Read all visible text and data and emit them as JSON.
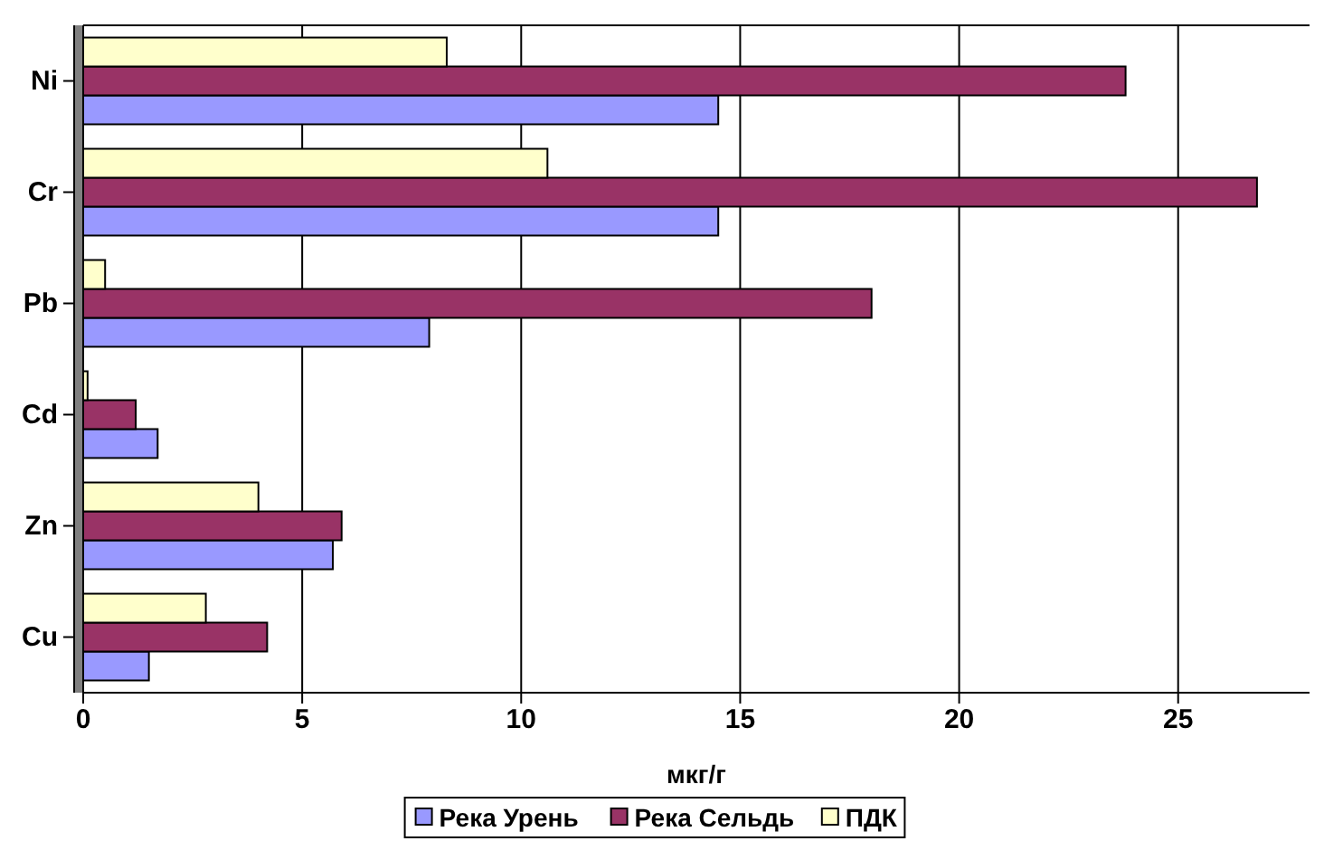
{
  "chart_data": {
    "type": "bar",
    "orientation": "horizontal",
    "xlabel": "мкг/г",
    "categories": [
      "Ni",
      "Cr",
      "Pb",
      "Cd",
      "Zn",
      "Cu"
    ],
    "series": [
      {
        "name": "Река Урень",
        "color": "#9999ff",
        "values": [
          14.5,
          14.5,
          7.9,
          1.7,
          5.7,
          1.5
        ]
      },
      {
        "name": "Река Сельдь",
        "color": "#993366",
        "values": [
          23.8,
          26.8,
          18,
          1.2,
          5.9,
          4.2
        ]
      },
      {
        "name": "ПДК",
        "color": "#ffffcc",
        "values": [
          8.3,
          10.6,
          0.5,
          0.1,
          4,
          2.8
        ]
      }
    ],
    "xlim": [
      0,
      28
    ],
    "xticks": [
      0,
      5,
      10,
      15,
      20,
      25
    ],
    "grid": "x",
    "legend": "bottom"
  }
}
